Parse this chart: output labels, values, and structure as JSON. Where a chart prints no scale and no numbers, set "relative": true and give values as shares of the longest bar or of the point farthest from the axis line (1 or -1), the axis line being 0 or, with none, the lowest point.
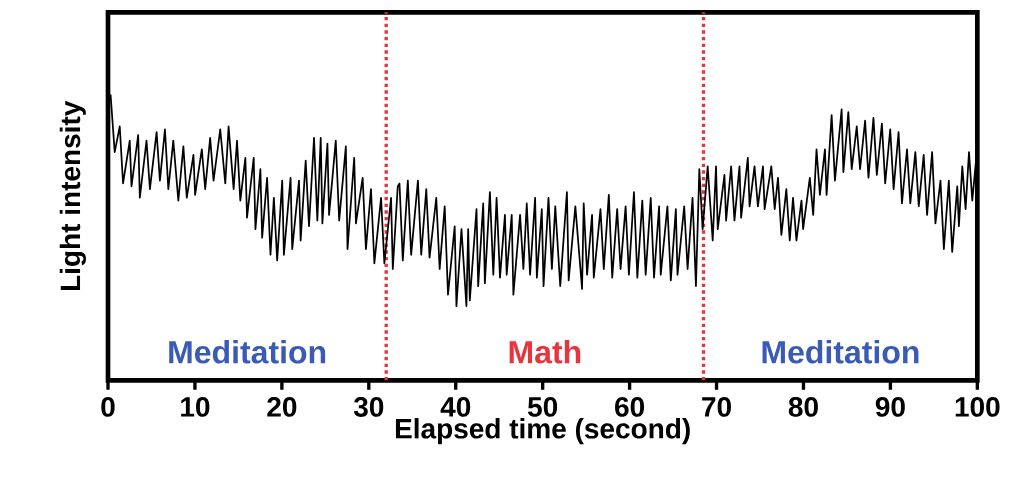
{
  "chart_data": {
    "type": "line",
    "relative": true,
    "xlabel": "Elapsed time (second)",
    "ylabel": "Light intensity",
    "xlim": [
      0,
      100
    ],
    "xticks": [
      0,
      10,
      20,
      30,
      40,
      50,
      60,
      70,
      80,
      90,
      100
    ],
    "ref_lines": [
      {
        "axis": "x",
        "value": 32,
        "color": "#e8343c",
        "line_style": "dotted"
      },
      {
        "axis": "x",
        "value": 68.5,
        "color": "#e8343c",
        "line_style": "dotted"
      }
    ],
    "annotations": [
      "Meditation",
      "Math",
      "Meditation"
    ],
    "series": [
      {
        "color": "#000000",
        "x": [
          0,
          0.3,
          0.77,
          1.35,
          1.73,
          2.5,
          2.7,
          3.47,
          3.66,
          4.43,
          4.82,
          5.59,
          5.97,
          6.55,
          6.94,
          7.51,
          8.09,
          8.67,
          9.06,
          9.83,
          10.02,
          10.79,
          11.18,
          11.75,
          12.14,
          12.91,
          13.49,
          13.87,
          14.45,
          14.84,
          15.22,
          15.8,
          15.99,
          16.76,
          16.96,
          17.53,
          17.73,
          18.3,
          18.69,
          19.08,
          19.46,
          20.04,
          20.23,
          21,
          21.19,
          21.97,
          22.16,
          22.74,
          23.12,
          23.7,
          24.08,
          24.47,
          24.66,
          25.24,
          25.43,
          26.2,
          26.59,
          27.36,
          27.55,
          28.32,
          28.52,
          29.29,
          29.67,
          30.25,
          30.64,
          31.41,
          31.79,
          32.56,
          32.76,
          33.33,
          33.53,
          33.91,
          34.49,
          34.87,
          35.65,
          36.03,
          36.61,
          36.99,
          37.76,
          38.15,
          38.73,
          39.11,
          39.88,
          40.08,
          40.66,
          41.23,
          41.43,
          41.62,
          42.39,
          42.58,
          43.16,
          43.35,
          43.93,
          44.32,
          44.7,
          45.09,
          45.66,
          45.86,
          46.44,
          46.63,
          47.4,
          47.78,
          48.17,
          48.55,
          49.13,
          49.33,
          49.9,
          50.1,
          50.67,
          51.06,
          51.45,
          52.02,
          52.79,
          52.99,
          53.76,
          54.53,
          54.72,
          55.11,
          55.68,
          55.88,
          56.65,
          57.03,
          57.61,
          58,
          58.57,
          58.96,
          59.54,
          59.92,
          60.5,
          60.89,
          61.46,
          61.85,
          62.43,
          62.81,
          63.39,
          63.58,
          64.35,
          64.74,
          65.32,
          65.51,
          66.28,
          66.67,
          67.24,
          67.63,
          68.02,
          68.4,
          68.98,
          69.56,
          69.94,
          70.14,
          70.91,
          71.1,
          71.68,
          72.06,
          72.64,
          72.83,
          73.6,
          73.8,
          74.37,
          74.76,
          75.34,
          75.53,
          76.3,
          76.69,
          77.07,
          77.46,
          78.03,
          78.42,
          78.8,
          79.19,
          79.77,
          79.96,
          80.73,
          81.12,
          81.5,
          81.89,
          82.47,
          82.66,
          83.24,
          83.62,
          84.39,
          84.59,
          85.16,
          85.55,
          86.13,
          86.51,
          87.09,
          87.48,
          88.05,
          88.44,
          89.02,
          89.4,
          89.98,
          90.37,
          90.94,
          91.33,
          91.91,
          92.29,
          92.87,
          93.26,
          93.83,
          94.22,
          94.8,
          95.18,
          95.76,
          96.15,
          96.72,
          97.11,
          97.69,
          97.88,
          98.27,
          98.65,
          99.04,
          99.42,
          100
        ],
        "values": [
          0.97,
          1.0,
          0.8,
          0.89,
          0.69,
          0.84,
          0.68,
          0.86,
          0.64,
          0.84,
          0.67,
          0.87,
          0.7,
          0.88,
          0.67,
          0.84,
          0.63,
          0.82,
          0.64,
          0.79,
          0.65,
          0.81,
          0.67,
          0.85,
          0.7,
          0.88,
          0.69,
          0.89,
          0.67,
          0.84,
          0.63,
          0.78,
          0.57,
          0.78,
          0.53,
          0.74,
          0.5,
          0.71,
          0.44,
          0.64,
          0.42,
          0.7,
          0.44,
          0.71,
          0.46,
          0.7,
          0.49,
          0.77,
          0.54,
          0.85,
          0.56,
          0.85,
          0.55,
          0.83,
          0.58,
          0.84,
          0.56,
          0.82,
          0.46,
          0.78,
          0.55,
          0.71,
          0.46,
          0.67,
          0.41,
          0.64,
          0.41,
          0.64,
          0.39,
          0.68,
          0.69,
          0.42,
          0.7,
          0.44,
          0.7,
          0.44,
          0.67,
          0.43,
          0.64,
          0.39,
          0.61,
          0.3,
          0.54,
          0.26,
          0.53,
          0.26,
          0.53,
          0.28,
          0.6,
          0.33,
          0.62,
          0.34,
          0.66,
          0.37,
          0.64,
          0.36,
          0.58,
          0.37,
          0.58,
          0.3,
          0.58,
          0.39,
          0.62,
          0.37,
          0.64,
          0.36,
          0.6,
          0.33,
          0.64,
          0.39,
          0.61,
          0.33,
          0.66,
          0.35,
          0.61,
          0.32,
          0.62,
          0.37,
          0.58,
          0.36,
          0.6,
          0.39,
          0.65,
          0.36,
          0.6,
          0.39,
          0.61,
          0.37,
          0.66,
          0.36,
          0.63,
          0.37,
          0.64,
          0.36,
          0.61,
          0.37,
          0.61,
          0.35,
          0.6,
          0.37,
          0.61,
          0.39,
          0.64,
          0.33,
          0.74,
          0.53,
          0.75,
          0.49,
          0.75,
          0.53,
          0.72,
          0.56,
          0.75,
          0.56,
          0.75,
          0.57,
          0.78,
          0.61,
          0.75,
          0.61,
          0.75,
          0.6,
          0.75,
          0.6,
          0.71,
          0.51,
          0.67,
          0.49,
          0.64,
          0.49,
          0.63,
          0.53,
          0.71,
          0.58,
          0.81,
          0.65,
          0.81,
          0.65,
          0.93,
          0.7,
          0.95,
          0.73,
          0.94,
          0.74,
          0.89,
          0.74,
          0.91,
          0.71,
          0.92,
          0.72,
          0.9,
          0.69,
          0.88,
          0.67,
          0.87,
          0.62,
          0.81,
          0.62,
          0.8,
          0.61,
          0.79,
          0.58,
          0.8,
          0.55,
          0.7,
          0.46,
          0.7,
          0.45,
          0.68,
          0.54,
          0.75,
          0.6,
          0.8,
          0.63,
          0.82
        ]
      }
    ]
  }
}
